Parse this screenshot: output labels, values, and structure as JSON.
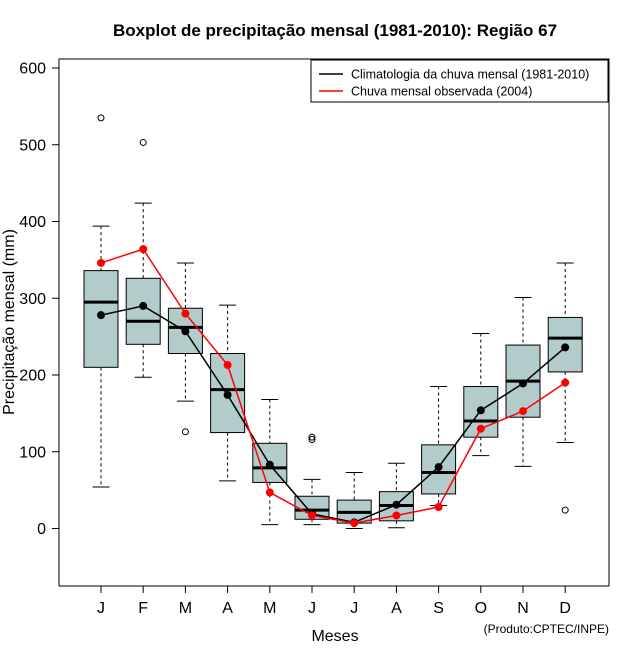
{
  "chart_data": {
    "type": "boxplot",
    "title": "Boxplot de precipitação mensal (1981-2010): Região 67",
    "xlabel": "Meses",
    "ylabel": "Precipitação mensal (mm)",
    "ylim": [
      -75,
      610
    ],
    "yticks": [
      0,
      100,
      200,
      300,
      400,
      500,
      600
    ],
    "categories": [
      "J",
      "F",
      "M",
      "A",
      "M",
      "J",
      "J",
      "A",
      "S",
      "O",
      "N",
      "D"
    ],
    "boxes": [
      {
        "whisker_low": 54,
        "q1": 210,
        "median": 295,
        "q3": 336,
        "whisker_high": 394,
        "outliers": [
          535
        ]
      },
      {
        "whisker_low": 197,
        "q1": 240,
        "median": 270,
        "q3": 326,
        "whisker_high": 424,
        "outliers": [
          503
        ]
      },
      {
        "whisker_low": 166,
        "q1": 228,
        "median": 262,
        "q3": 287,
        "whisker_high": 346,
        "outliers": [
          126
        ]
      },
      {
        "whisker_low": 62,
        "q1": 125,
        "median": 181,
        "q3": 228,
        "whisker_high": 291,
        "outliers": []
      },
      {
        "whisker_low": 5,
        "q1": 60,
        "median": 79,
        "q3": 111,
        "whisker_high": 168,
        "outliers": []
      },
      {
        "whisker_low": 5,
        "q1": 12,
        "median": 24,
        "q3": 42,
        "whisker_high": 64,
        "outliers": [
          116,
          119
        ]
      },
      {
        "whisker_low": 0,
        "q1": 7,
        "median": 21,
        "q3": 37,
        "whisker_high": 73,
        "outliers": []
      },
      {
        "whisker_low": 1,
        "q1": 10,
        "median": 30,
        "q3": 48,
        "whisker_high": 85,
        "outliers": []
      },
      {
        "whisker_low": 30,
        "q1": 45,
        "median": 73,
        "q3": 109,
        "whisker_high": 185,
        "outliers": []
      },
      {
        "whisker_low": 95,
        "q1": 119,
        "median": 140,
        "q3": 185,
        "whisker_high": 254,
        "outliers": []
      },
      {
        "whisker_low": 81,
        "q1": 145,
        "median": 192,
        "q3": 239,
        "whisker_high": 301,
        "outliers": []
      },
      {
        "whisker_low": 112,
        "q1": 204,
        "median": 248,
        "q3": 275,
        "whisker_high": 346,
        "outliers": [
          24
        ]
      }
    ],
    "series": [
      {
        "name": "Climatologia da chuva mensal (1981-2010)",
        "color": "#000000",
        "values": [
          278,
          290,
          257,
          174,
          83,
          19,
          8,
          31,
          80,
          154,
          189,
          236
        ]
      },
      {
        "name": "Chuva mensal observada (2004)",
        "color": "#ff0000",
        "values": [
          346,
          364,
          280,
          213,
          47,
          17,
          7,
          17,
          28,
          130,
          153,
          190
        ]
      }
    ],
    "box_fill": "#b2cccc",
    "legend_position": "top-right"
  },
  "footer": "(Produto:CPTEC/INPE)"
}
